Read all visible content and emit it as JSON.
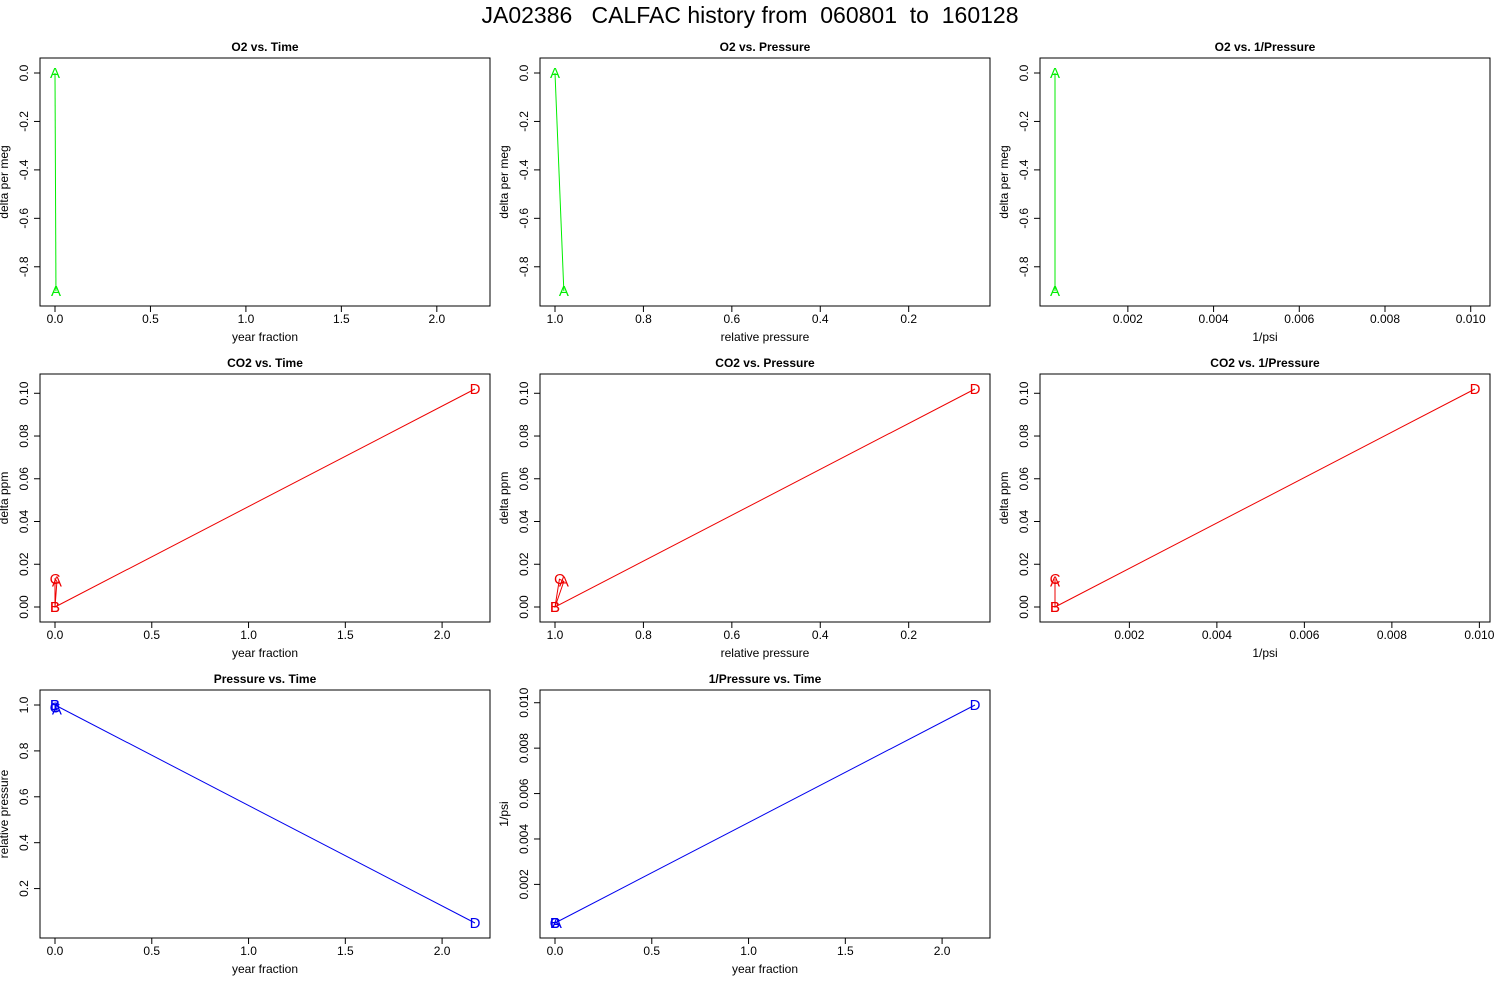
{
  "title": "JA02386   CALFAC history from  060801  to  160128",
  "chart_data": [
    {
      "type": "line",
      "title": "O2 vs. Time",
      "xlabel": "year fraction",
      "ylabel": "delta per meg",
      "xlim": [
        0.0,
        2.2
      ],
      "ylim": [
        -0.9,
        0.0
      ],
      "xticks": [
        "0.0",
        "0.5",
        "1.0",
        "1.5",
        "2.0"
      ],
      "yticks": [
        "0.0",
        "-0.2",
        "-0.4",
        "-0.6",
        "-0.8"
      ],
      "color": "#00ee00",
      "series": [
        {
          "x": [
            0.0,
            0.005
          ],
          "y": [
            0.0,
            -0.9
          ],
          "labels": [
            "A",
            "A"
          ]
        }
      ]
    },
    {
      "type": "line",
      "title": "O2 vs. Pressure",
      "xlabel": "relative pressure",
      "ylabel": "delta per meg",
      "xlim": [
        1.0,
        0.05
      ],
      "ylim": [
        -0.9,
        0.0
      ],
      "xticks": [
        "1.0",
        "0.8",
        "0.6",
        "0.4",
        "0.2"
      ],
      "yticks": [
        "0.0",
        "-0.2",
        "-0.4",
        "-0.6",
        "-0.8"
      ],
      "color": "#00ee00",
      "series": [
        {
          "x": [
            1.0,
            0.98
          ],
          "y": [
            0.0,
            -0.9
          ],
          "labels": [
            "A",
            "A"
          ]
        }
      ]
    },
    {
      "type": "line",
      "title": "O2 vs. 1/Pressure",
      "xlabel": "1/psi",
      "ylabel": "delta per meg",
      "xlim": [
        0.0003,
        0.0101
      ],
      "ylim": [
        -0.9,
        0.0
      ],
      "xticks": [
        "0.002",
        "0.004",
        "0.006",
        "0.008",
        "0.010"
      ],
      "yticks": [
        "0.0",
        "-0.2",
        "-0.4",
        "-0.6",
        "-0.8"
      ],
      "color": "#00ee00",
      "series": [
        {
          "x": [
            0.0003,
            0.0003
          ],
          "y": [
            0.0,
            -0.9
          ],
          "labels": [
            "A",
            "A"
          ]
        }
      ]
    },
    {
      "type": "line",
      "title": "CO2 vs. Time",
      "xlabel": "year fraction",
      "ylabel": "delta ppm",
      "xlim": [
        0.0,
        2.17
      ],
      "ylim": [
        0.0,
        0.102
      ],
      "xticks": [
        "0.0",
        "0.5",
        "1.0",
        "1.5",
        "2.0"
      ],
      "yticks": [
        "0.00",
        "0.02",
        "0.04",
        "0.06",
        "0.08",
        "0.10"
      ],
      "color": "#ee0000",
      "series": [
        {
          "x": [
            0.0,
            0.01,
            0.0,
            0.0,
            2.17
          ],
          "y": [
            0.0,
            0.012,
            0.013,
            0.0,
            0.102
          ],
          "labels": [
            "B",
            "A",
            "C",
            "B",
            "D"
          ]
        }
      ]
    },
    {
      "type": "line",
      "title": "CO2 vs. Pressure",
      "xlabel": "relative pressure",
      "ylabel": "delta ppm",
      "xlim": [
        1.0,
        0.05
      ],
      "ylim": [
        0.0,
        0.102
      ],
      "xticks": [
        "1.0",
        "0.8",
        "0.6",
        "0.4",
        "0.2"
      ],
      "yticks": [
        "0.00",
        "0.02",
        "0.04",
        "0.06",
        "0.08",
        "0.10"
      ],
      "color": "#ee0000",
      "series": [
        {
          "x": [
            1.0,
            0.98,
            0.99,
            1.0,
            0.05
          ],
          "y": [
            0.0,
            0.012,
            0.013,
            0.0,
            0.102
          ],
          "labels": [
            "B",
            "A",
            "C",
            "B",
            "D"
          ]
        }
      ]
    },
    {
      "type": "line",
      "title": "CO2 vs. 1/Pressure",
      "xlabel": "1/psi",
      "ylabel": "delta ppm",
      "xlim": [
        0.0003,
        0.0099
      ],
      "ylim": [
        0.0,
        0.102
      ],
      "xticks": [
        "0.002",
        "0.004",
        "0.006",
        "0.008",
        "0.010"
      ],
      "yticks": [
        "0.00",
        "0.02",
        "0.04",
        "0.06",
        "0.08",
        "0.10"
      ],
      "color": "#ee0000",
      "series": [
        {
          "x": [
            0.0003,
            0.0003,
            0.0003,
            0.0003,
            0.0099
          ],
          "y": [
            0.0,
            0.012,
            0.013,
            0.0,
            0.102
          ],
          "labels": [
            "B",
            "A",
            "C",
            "B",
            "D"
          ]
        }
      ]
    },
    {
      "type": "line",
      "title": "Pressure vs. Time",
      "xlabel": "year fraction",
      "ylabel": "relative pressure",
      "xlim": [
        0.0,
        2.17
      ],
      "ylim": [
        0.05,
        1.0
      ],
      "xticks": [
        "0.0",
        "0.5",
        "1.0",
        "1.5",
        "2.0"
      ],
      "yticks": [
        "0.2",
        "0.4",
        "0.6",
        "0.8",
        "1.0"
      ],
      "color": "#0000ee",
      "series": [
        {
          "x": [
            0.0,
            0.01,
            0.0,
            0.0,
            2.17
          ],
          "y": [
            1.0,
            0.98,
            0.99,
            1.0,
            0.05
          ],
          "labels": [
            "B",
            "A",
            "C",
            "B",
            "D"
          ]
        }
      ]
    },
    {
      "type": "line",
      "title": "1/Pressure vs. Time",
      "xlabel": "year fraction",
      "ylabel": "1/psi",
      "xlim": [
        0.0,
        2.17
      ],
      "ylim": [
        0.0003,
        0.0099
      ],
      "xticks": [
        "0.0",
        "0.5",
        "1.0",
        "1.5",
        "2.0"
      ],
      "yticks": [
        "0.002",
        "0.004",
        "0.006",
        "0.008",
        "0.010"
      ],
      "color": "#0000ee",
      "series": [
        {
          "x": [
            0.0,
            0.01,
            0.0,
            0.0,
            2.17
          ],
          "y": [
            0.0003,
            0.0003,
            0.0003,
            0.0003,
            0.0099
          ],
          "labels": [
            "B",
            "A",
            "C",
            "B",
            "D"
          ]
        }
      ]
    }
  ]
}
